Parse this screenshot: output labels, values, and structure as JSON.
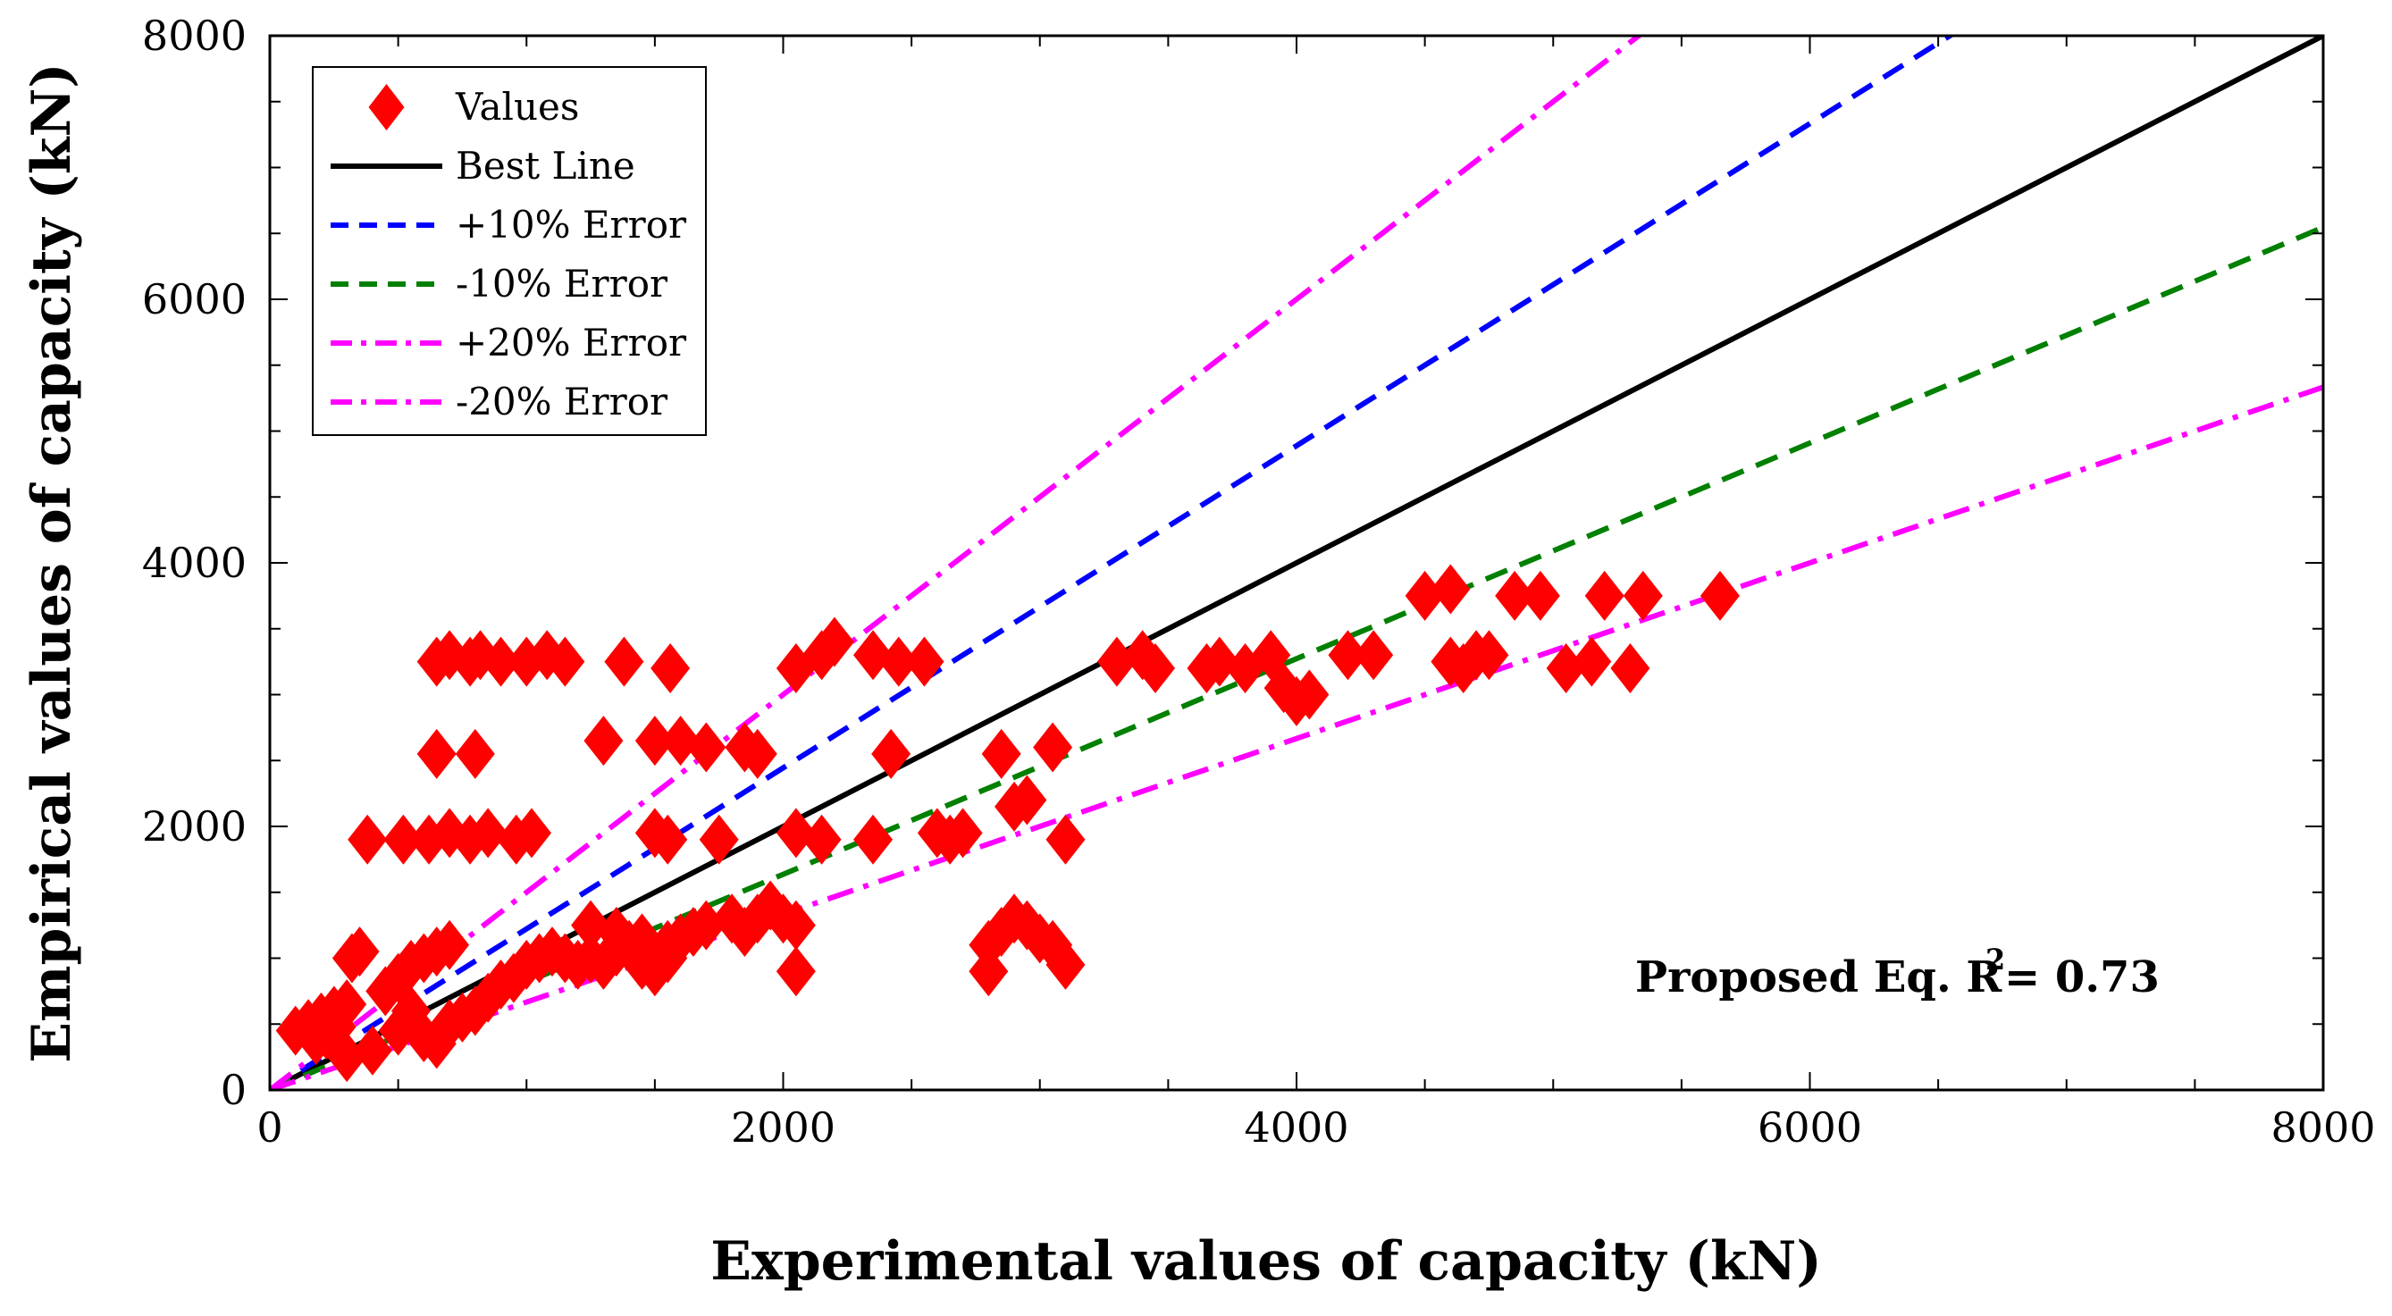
{
  "chart_data": {
    "type": "scatter",
    "title": "",
    "xlabel": "Experimental values of capacity (kN)",
    "ylabel": "Empirical values of capacity (kN)",
    "xlim": [
      0,
      8000
    ],
    "ylim": [
      0,
      8000
    ],
    "xticks": [
      "0",
      "2000",
      "4000",
      "6000",
      "8000"
    ],
    "yticks": [
      "0",
      "2000",
      "4000",
      "6000",
      "8000"
    ],
    "grid": false,
    "legend_position": "top-left",
    "annotation": {
      "text": "Proposed Eq. R",
      "sup": "2",
      "value": "= 0.73"
    },
    "series": [
      {
        "name": "Values",
        "kind": "scatter",
        "marker": "diamond",
        "color": "#ff0000",
        "points": [
          [
            100,
            450
          ],
          [
            150,
            500
          ],
          [
            200,
            550
          ],
          [
            250,
            600
          ],
          [
            300,
            650
          ],
          [
            180,
            380
          ],
          [
            220,
            420
          ],
          [
            260,
            480
          ],
          [
            320,
            1000
          ],
          [
            350,
            1050
          ],
          [
            450,
            750
          ],
          [
            500,
            850
          ],
          [
            550,
            950
          ],
          [
            600,
            1000
          ],
          [
            650,
            1050
          ],
          [
            700,
            1100
          ],
          [
            300,
            250
          ],
          [
            400,
            300
          ],
          [
            500,
            450
          ],
          [
            550,
            600
          ],
          [
            600,
            400
          ],
          [
            650,
            350
          ],
          [
            700,
            500
          ],
          [
            750,
            550
          ],
          [
            800,
            600
          ],
          [
            850,
            700
          ],
          [
            900,
            800
          ],
          [
            950,
            850
          ],
          [
            1000,
            950
          ],
          [
            1050,
            1000
          ],
          [
            1100,
            1050
          ],
          [
            1150,
            1000
          ],
          [
            1200,
            950
          ],
          [
            1250,
            1000
          ],
          [
            1300,
            950
          ],
          [
            1350,
            1050
          ],
          [
            1400,
            1100
          ],
          [
            1450,
            950
          ],
          [
            1500,
            900
          ],
          [
            1550,
            1000
          ],
          [
            1600,
            1150
          ],
          [
            1650,
            1200
          ],
          [
            1700,
            1250
          ],
          [
            1800,
            1300
          ],
          [
            1850,
            1200
          ],
          [
            1900,
            1300
          ],
          [
            1950,
            1400
          ],
          [
            2000,
            1300
          ],
          [
            2050,
            1250
          ],
          [
            2050,
            900
          ],
          [
            1250,
            1250
          ],
          [
            1350,
            1200
          ],
          [
            1450,
            1150
          ],
          [
            1550,
            1100
          ],
          [
            380,
            1900
          ],
          [
            520,
            1900
          ],
          [
            620,
            1900
          ],
          [
            700,
            1950
          ],
          [
            780,
            1900
          ],
          [
            850,
            1950
          ],
          [
            960,
            1900
          ],
          [
            1020,
            1950
          ],
          [
            1500,
            1950
          ],
          [
            1550,
            1900
          ],
          [
            1750,
            1900
          ],
          [
            650,
            3250
          ],
          [
            700,
            3300
          ],
          [
            780,
            3250
          ],
          [
            820,
            3300
          ],
          [
            900,
            3250
          ],
          [
            1000,
            3250
          ],
          [
            1080,
            3300
          ],
          [
            1150,
            3250
          ],
          [
            1380,
            3250
          ],
          [
            1560,
            3200
          ],
          [
            650,
            2550
          ],
          [
            800,
            2550
          ],
          [
            1300,
            2650
          ],
          [
            1500,
            2650
          ],
          [
            1600,
            2650
          ],
          [
            1700,
            2600
          ],
          [
            1850,
            2600
          ],
          [
            1900,
            2550
          ],
          [
            2050,
            3200
          ],
          [
            2150,
            3300
          ],
          [
            2200,
            3400
          ],
          [
            2350,
            3300
          ],
          [
            2450,
            3250
          ],
          [
            2550,
            3250
          ],
          [
            2050,
            1950
          ],
          [
            2150,
            1900
          ],
          [
            2350,
            1900
          ],
          [
            2420,
            2550
          ],
          [
            2600,
            1950
          ],
          [
            2650,
            1900
          ],
          [
            2700,
            1950
          ],
          [
            2850,
            2550
          ],
          [
            2900,
            2150
          ],
          [
            2950,
            2200
          ],
          [
            3050,
            2600
          ],
          [
            3100,
            1900
          ],
          [
            2800,
            1100
          ],
          [
            2850,
            1200
          ],
          [
            2900,
            1300
          ],
          [
            2950,
            1250
          ],
          [
            3000,
            1150
          ],
          [
            3050,
            1100
          ],
          [
            3100,
            950
          ],
          [
            2800,
            900
          ],
          [
            3300,
            3250
          ],
          [
            3400,
            3300
          ],
          [
            3450,
            3200
          ],
          [
            3650,
            3200
          ],
          [
            3700,
            3250
          ],
          [
            3800,
            3200
          ],
          [
            3900,
            3300
          ],
          [
            3950,
            3050
          ],
          [
            4000,
            2950
          ],
          [
            4050,
            3000
          ],
          [
            4200,
            3300
          ],
          [
            4300,
            3300
          ],
          [
            4500,
            3750
          ],
          [
            4600,
            3800
          ],
          [
            4600,
            3250
          ],
          [
            4650,
            3200
          ],
          [
            4700,
            3300
          ],
          [
            4750,
            3300
          ],
          [
            4850,
            3750
          ],
          [
            4950,
            3750
          ],
          [
            5050,
            3200
          ],
          [
            5150,
            3250
          ],
          [
            5200,
            3750
          ],
          [
            5300,
            3200
          ],
          [
            5350,
            3750
          ],
          [
            5650,
            3750
          ]
        ]
      },
      {
        "name": "Best Line",
        "kind": "line",
        "slope": 1.0,
        "color": "#000000",
        "dash": "solid"
      },
      {
        "name": "+10% Error",
        "kind": "line",
        "slope": 1.2222,
        "color": "#0000ff",
        "dash": "dashed"
      },
      {
        "name": "-10% Error",
        "kind": "line",
        "slope": 0.8182,
        "color": "#008000",
        "dash": "dashed"
      },
      {
        "name": "+20% Error",
        "kind": "line",
        "slope": 1.5,
        "color": "#ff00ff",
        "dash": "dashdot"
      },
      {
        "name": "-20% Error",
        "kind": "line",
        "slope": 0.6667,
        "color": "#ff00ff",
        "dash": "dashdot"
      }
    ]
  }
}
